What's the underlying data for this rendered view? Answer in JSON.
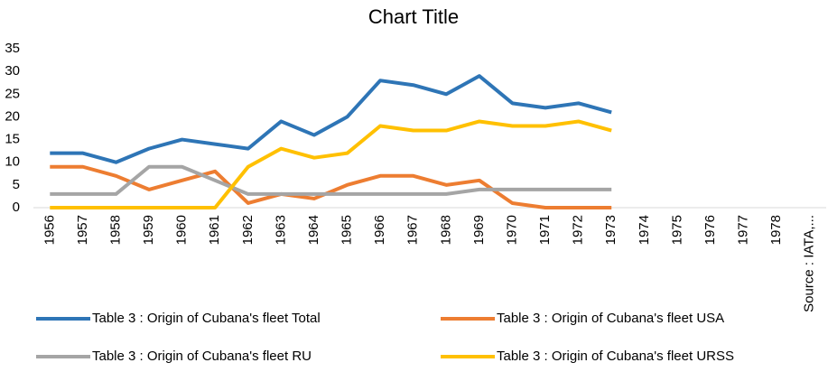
{
  "chart_data": {
    "type": "line",
    "title": "Chart Title",
    "categories": [
      "1956",
      "1957",
      "1958",
      "1959",
      "1960",
      "1961",
      "1962",
      "1963",
      "1964",
      "1965",
      "1966",
      "1967",
      "1968",
      "1969",
      "1970",
      "1971",
      "1972",
      "1973",
      "1974",
      "1975",
      "1976",
      "1977",
      "1978",
      "Source : IATA,..."
    ],
    "series": [
      {
        "name": "Table 3 : Origin of Cubana's fleet Total",
        "color": "#2e75b6",
        "values": [
          12,
          12,
          10,
          13,
          15,
          14,
          13,
          19,
          16,
          20,
          28,
          27,
          25,
          29,
          23,
          22,
          23,
          21,
          null,
          null,
          null,
          null,
          null,
          null
        ]
      },
      {
        "name": "Table 3 : Origin of Cubana's fleet USA",
        "color": "#ed7d31",
        "values": [
          9,
          9,
          7,
          4,
          6,
          8,
          1,
          3,
          2,
          5,
          7,
          7,
          5,
          6,
          1,
          0,
          0,
          0,
          null,
          null,
          null,
          null,
          null,
          null
        ]
      },
      {
        "name": "Table 3 : Origin of Cubana's fleet RU",
        "color": "#a5a5a5",
        "values": [
          3,
          3,
          3,
          9,
          9,
          6,
          3,
          3,
          3,
          3,
          3,
          3,
          3,
          4,
          4,
          4,
          4,
          4,
          null,
          null,
          null,
          null,
          null,
          null
        ]
      },
      {
        "name": "Table 3 : Origin of Cubana's fleet URSS",
        "color": "#ffc000",
        "values": [
          0,
          0,
          0,
          0,
          0,
          0,
          9,
          13,
          11,
          12,
          18,
          17,
          17,
          19,
          18,
          18,
          19,
          17,
          null,
          null,
          null,
          null,
          null,
          null
        ]
      }
    ],
    "ylim": [
      0,
      35
    ],
    "yticks": [
      0,
      5,
      10,
      15,
      20,
      25,
      30,
      35
    ],
    "grid": false
  }
}
